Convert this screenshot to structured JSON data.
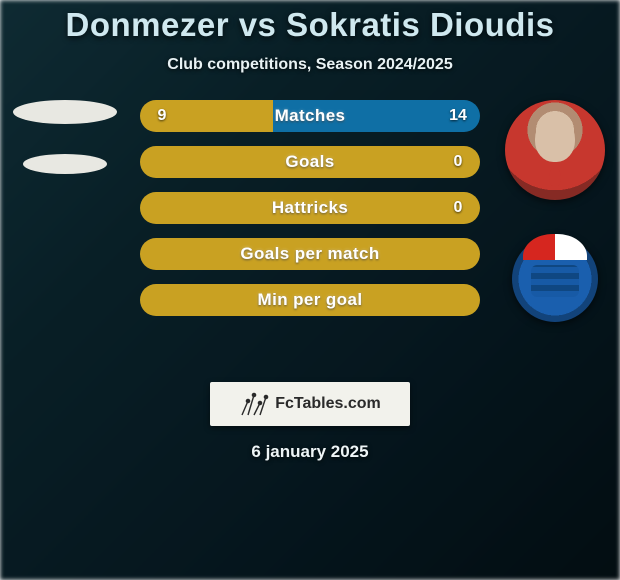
{
  "title": "Donmezer vs Sokratis Dioudis",
  "subtitle": "Club competitions, Season 2024/2025",
  "date": "6 january 2025",
  "logo_text": "FcTables.com",
  "colors": {
    "left_bar": "#c9a122",
    "right_bar": "#0f6fa5",
    "background_tint": "#0f3845",
    "title_color": "#cfe8ef",
    "text_color": "#eef5f7"
  },
  "left_player": {
    "name": "Donmezer",
    "placeholder_shape": "ellipse"
  },
  "right_player": {
    "name": "Sokratis Dioudis",
    "portrait_desc": "player-photo",
    "club_crest_desc": "Gaziantep crest"
  },
  "stats": [
    {
      "label": "Matches",
      "left_value": "9",
      "right_value": "14",
      "left_pct": 39,
      "right_pct": 61,
      "show_values": true,
      "fill": "split"
    },
    {
      "label": "Goals",
      "left_value": "",
      "right_value": "0",
      "left_pct": 100,
      "right_pct": 0,
      "show_values": true,
      "fill": "left"
    },
    {
      "label": "Hattricks",
      "left_value": "",
      "right_value": "0",
      "left_pct": 100,
      "right_pct": 0,
      "show_values": true,
      "fill": "left"
    },
    {
      "label": "Goals per match",
      "left_value": "",
      "right_value": "",
      "left_pct": 100,
      "right_pct": 0,
      "show_values": false,
      "fill": "left"
    },
    {
      "label": "Min per goal",
      "left_value": "",
      "right_value": "",
      "left_pct": 100,
      "right_pct": 0,
      "show_values": false,
      "fill": "left"
    }
  ]
}
